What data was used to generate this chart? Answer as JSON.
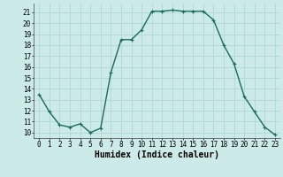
{
  "title": "",
  "xlabel": "Humidex (Indice chaleur)",
  "x": [
    0,
    1,
    2,
    3,
    4,
    5,
    6,
    7,
    8,
    9,
    10,
    11,
    12,
    13,
    14,
    15,
    16,
    17,
    18,
    19,
    20,
    21,
    22,
    23
  ],
  "y": [
    13.5,
    11.9,
    10.7,
    10.5,
    10.8,
    10.0,
    10.4,
    15.5,
    18.5,
    18.5,
    19.4,
    21.1,
    21.1,
    21.2,
    21.1,
    21.1,
    21.1,
    20.3,
    18.0,
    16.3,
    13.3,
    11.9,
    10.5,
    9.8
  ],
  "line_color": "#1a6b5a",
  "marker": "+",
  "bg_color": "#cceae7",
  "grid_color": "#aad4d0",
  "ylim": [
    9.5,
    21.8
  ],
  "xlim": [
    -0.5,
    23.5
  ],
  "yticks": [
    10,
    11,
    12,
    13,
    14,
    15,
    16,
    17,
    18,
    19,
    20,
    21
  ],
  "xticks": [
    0,
    1,
    2,
    3,
    4,
    5,
    6,
    7,
    8,
    9,
    10,
    11,
    12,
    13,
    14,
    15,
    16,
    17,
    18,
    19,
    20,
    21,
    22,
    23
  ],
  "tick_fontsize": 5.5,
  "xlabel_fontsize": 7.0,
  "linewidth": 1.0,
  "markersize": 3.0,
  "markeredgewidth": 0.8
}
